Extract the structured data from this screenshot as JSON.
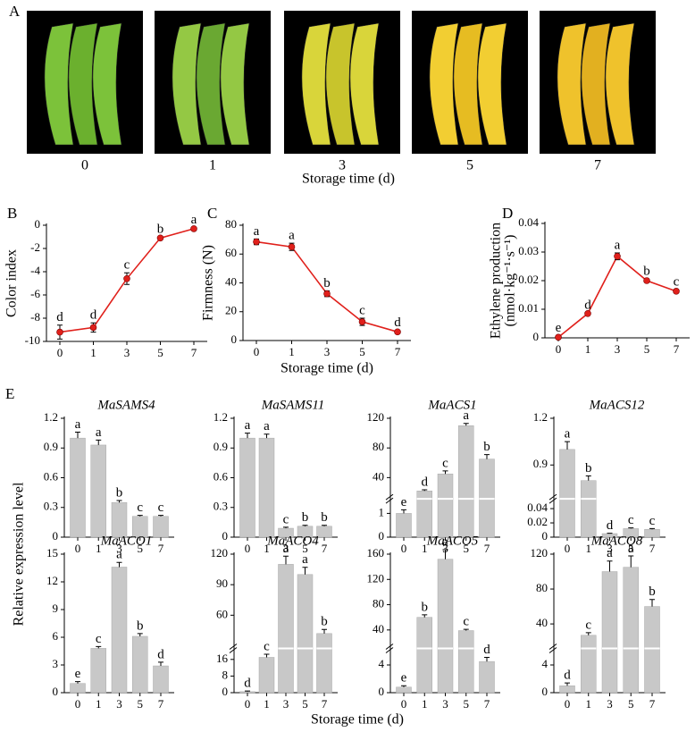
{
  "figure": {
    "panel_labels": [
      "A",
      "B",
      "C",
      "D",
      "E"
    ],
    "photos": {
      "categories": [
        "0",
        "1",
        "3",
        "5",
        "7"
      ],
      "xlabel": "Storage time (d)"
    },
    "expression_ylabel": "Relative expression level",
    "expression_xlabel": "Storage time (d)"
  },
  "chart_data": [
    {
      "type": "line",
      "ylabel": "Color index",
      "categories": [
        "0",
        "1",
        "3",
        "5",
        "7"
      ],
      "values": [
        -9.2,
        -8.8,
        -4.6,
        -1.1,
        -0.3
      ],
      "errors": [
        0.6,
        0.4,
        0.5,
        0.1,
        0.1
      ],
      "annotations": [
        "d",
        "d",
        "c",
        "b",
        "a"
      ],
      "color": "#e0201b",
      "ylim": [
        -10,
        0
      ],
      "yticks": [
        -10,
        -8,
        -6,
        -4,
        -2,
        0
      ]
    },
    {
      "type": "line",
      "ylabel": "Firmness (N)",
      "xlabel": "Storage time (d)",
      "categories": [
        "0",
        "1",
        "3",
        "5",
        "7"
      ],
      "values": [
        68.5,
        65,
        32.5,
        13,
        6
      ],
      "errors": [
        2,
        2.5,
        2,
        2.5,
        1
      ],
      "annotations": [
        "a",
        "a",
        "b",
        "c",
        "d"
      ],
      "color": "#e0201b",
      "ylim": [
        0,
        80
      ],
      "yticks": [
        0,
        20,
        40,
        60,
        80
      ]
    },
    {
      "type": "line",
      "ylabel": [
        "Ethylene production",
        "(nmol·kg⁻¹·s⁻¹)"
      ],
      "categories": [
        "0",
        "1",
        "3",
        "5",
        "7"
      ],
      "values": [
        0.0002,
        0.0085,
        0.0285,
        0.02,
        0.0163
      ],
      "errors": [
        0.0005,
        0.0003,
        0.0012,
        0.0006,
        0.0006
      ],
      "annotations": [
        "e",
        "d",
        "a",
        "b",
        "c"
      ],
      "color": "#e0201b",
      "ylim": [
        0,
        0.04
      ],
      "yticks": [
        0,
        0.01,
        0.02,
        0.03,
        0.04
      ]
    },
    {
      "type": "bar",
      "title": "MaSAMS4",
      "categories": [
        "0",
        "1",
        "3",
        "5",
        "7"
      ],
      "values": [
        1.0,
        0.93,
        0.35,
        0.21,
        0.21
      ],
      "errors": [
        0.06,
        0.05,
        0.02,
        0.01,
        0.01
      ],
      "annotations": [
        "a",
        "a",
        "b",
        "c",
        "c"
      ],
      "color": "#c8c8c8",
      "ylim": [
        0,
        1.2
      ],
      "yticks": [
        0,
        0.3,
        0.6,
        0.9,
        1.2
      ]
    },
    {
      "type": "bar",
      "title": "MaSAMS11",
      "categories": [
        "0",
        "1",
        "3",
        "5",
        "7"
      ],
      "values": [
        1.0,
        1.0,
        0.09,
        0.11,
        0.11
      ],
      "errors": [
        0.05,
        0.04,
        0.01,
        0.01,
        0.01
      ],
      "annotations": [
        "a",
        "a",
        "c",
        "b",
        "b"
      ],
      "color": "#c8c8c8",
      "ylim": [
        0,
        1.2
      ],
      "yticks": [
        0,
        0.3,
        0.6,
        0.9,
        1.2
      ]
    },
    {
      "type": "bar",
      "title": "MaACS1",
      "categories": [
        "0",
        "1",
        "3",
        "5",
        "7"
      ],
      "values": [
        1.0,
        22,
        45,
        110,
        65
      ],
      "errors": [
        0.15,
        1.5,
        4,
        3,
        6
      ],
      "annotations": [
        "e",
        "d",
        "c",
        "a",
        "b"
      ],
      "color": "#c8c8c8",
      "ylim": [
        0,
        120
      ],
      "ybreak": [
        1.5,
        15
      ],
      "yticks": [
        0,
        1,
        40,
        80,
        120
      ]
    },
    {
      "type": "bar",
      "title": "MaACS12",
      "categories": [
        "0",
        "1",
        "3",
        "5",
        "7"
      ],
      "values": [
        1.0,
        0.8,
        0.005,
        0.012,
        0.011
      ],
      "errors": [
        0.05,
        0.03,
        0.0005,
        0.001,
        0.001
      ],
      "annotations": [
        "a",
        "b",
        "d",
        "c",
        "c"
      ],
      "color": "#c8c8c8",
      "ylim": [
        0,
        1.2
      ],
      "ybreak": [
        0.05,
        0.7
      ],
      "yticks": [
        0,
        0.02,
        0.04,
        0.9,
        1.2
      ]
    },
    {
      "type": "bar",
      "title": "MaACO1",
      "categories": [
        "0",
        "1",
        "3",
        "5",
        "7"
      ],
      "values": [
        1.0,
        4.8,
        13.6,
        6.1,
        2.9
      ],
      "errors": [
        0.2,
        0.2,
        0.5,
        0.3,
        0.4
      ],
      "annotations": [
        "e",
        "c",
        "a",
        "b",
        "d"
      ],
      "color": "#c8c8c8",
      "ylim": [
        0,
        15
      ],
      "yticks": [
        0,
        3,
        6,
        9,
        12,
        15
      ]
    },
    {
      "type": "bar",
      "title": "MaACO4",
      "categories": [
        "0",
        "1",
        "3",
        "5",
        "7"
      ],
      "values": [
        0.5,
        17,
        110,
        100,
        42
      ],
      "errors": [
        0.3,
        1.5,
        8,
        7,
        4
      ],
      "annotations": [
        "d",
        "c",
        "a",
        "a",
        "b"
      ],
      "color": "#c8c8c8",
      "ylim": [
        0,
        120
      ],
      "ybreak": [
        20,
        30
      ],
      "yticks": [
        0,
        8,
        16,
        60,
        90,
        120
      ]
    },
    {
      "type": "bar",
      "title": "MaACO5",
      "categories": [
        "0",
        "1",
        "3",
        "5",
        "7"
      ],
      "values": [
        0.8,
        60,
        152,
        39,
        4.5
      ],
      "errors": [
        0.2,
        4,
        15,
        2,
        0.6
      ],
      "annotations": [
        "e",
        "b",
        "a",
        "c",
        "d"
      ],
      "color": "#c8c8c8",
      "ylim": [
        0,
        160
      ],
      "ybreak": [
        6,
        15
      ],
      "yticks": [
        0,
        4,
        40,
        80,
        120,
        160
      ]
    },
    {
      "type": "bar",
      "title": "MaACO8",
      "categories": [
        "0",
        "1",
        "3",
        "5",
        "7"
      ],
      "values": [
        1.0,
        27,
        100,
        105,
        60
      ],
      "errors": [
        0.4,
        3,
        12,
        13,
        8
      ],
      "annotations": [
        "d",
        "c",
        "a",
        "a",
        "b"
      ],
      "color": "#c8c8c8",
      "ylim": [
        0,
        120
      ],
      "ybreak": [
        6,
        15
      ],
      "yticks": [
        0,
        4,
        40,
        80,
        120
      ]
    }
  ]
}
